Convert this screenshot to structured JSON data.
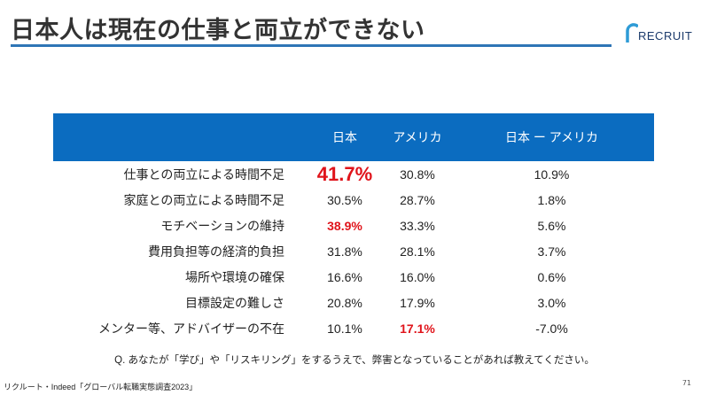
{
  "title": "日本人は現在の仕事と両立ができない",
  "logo": "RECRUIT",
  "table": {
    "headers": [
      "",
      "日本",
      "アメリカ",
      "日本 ー アメリカ"
    ],
    "rows": [
      {
        "label": "仕事との両立による時間不足",
        "jp": "41.7%",
        "us": "30.8%",
        "diff": "10.9%"
      },
      {
        "label": "家庭との両立による時間不足",
        "jp": "30.5%",
        "us": "28.7%",
        "diff": "1.8%"
      },
      {
        "label": "モチベーションの維持",
        "jp": "38.9%",
        "us": "33.3%",
        "diff": "5.6%"
      },
      {
        "label": "費用負担等の経済的負担",
        "jp": "31.8%",
        "us": "28.1%",
        "diff": "3.7%"
      },
      {
        "label": "場所や環境の確保",
        "jp": "16.6%",
        "us": "16.0%",
        "diff": "0.6%"
      },
      {
        "label": "目標設定の難しさ",
        "jp": "20.8%",
        "us": "17.9%",
        "diff": "3.0%"
      },
      {
        "label": "メンター等、アドバイザーの不在",
        "jp": "10.1%",
        "us": "17.1%",
        "diff": "-7.0%"
      }
    ]
  },
  "question": "Q. あなたが「学び」や「リスキリング」をするうえで、弊害となっていることがあれば教えてください。",
  "source": "リクルート・Indeed「グローバル転職実態調査2023」",
  "page": "71",
  "colors": {
    "accent": "#0b6cc0",
    "highlight": "#e0141b"
  }
}
